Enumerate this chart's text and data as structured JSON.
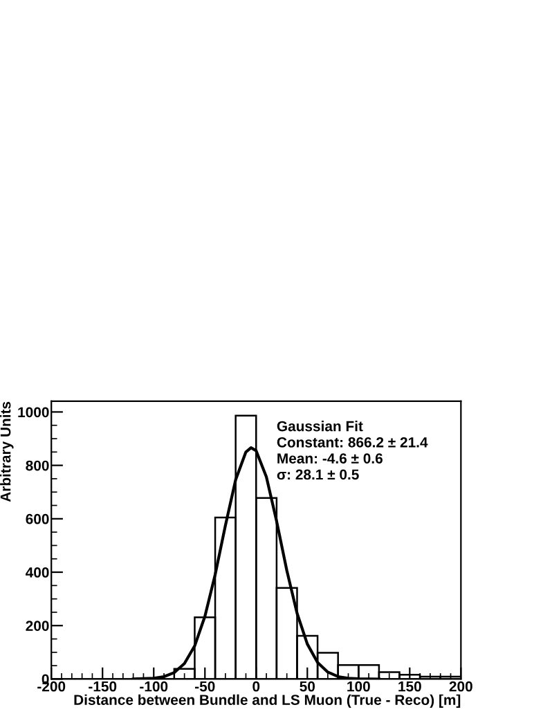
{
  "chart_data": {
    "type": "histogram",
    "xlabel": "Distance between Bundle and LS Muon (True - Reco) [m]",
    "ylabel": "Arbitrary Units",
    "bins": [
      -200,
      -180,
      -160,
      -140,
      -120,
      -100,
      -80,
      -60,
      -40,
      -20,
      0,
      20,
      40,
      60,
      80,
      100,
      120,
      140,
      160,
      180,
      200
    ],
    "values": [
      0,
      0,
      0,
      0,
      0,
      0,
      38,
      231,
      605,
      986,
      678,
      341,
      162,
      98,
      52,
      52,
      26,
      16,
      9,
      9
    ],
    "color": "#000000",
    "series": [
      {
        "type": "line",
        "color": "#000000",
        "x": [
          -120,
          -100,
          -90,
          -80,
          -70,
          -60,
          -50,
          -40,
          -30,
          -20,
          -10,
          -5,
          0,
          10,
          20,
          30,
          40,
          50,
          60,
          70,
          80,
          90,
          100,
          120
        ],
        "values": [
          0,
          3,
          9,
          24,
          58,
          124,
          235,
          391,
          575,
          746,
          850,
          866,
          855,
          757,
          591,
          406,
          246,
          131,
          62,
          26,
          9,
          3,
          1,
          0
        ]
      }
    ],
    "annotations": [
      "Gaussian Fit",
      "Constant: 866.2 ± 21.4",
      "Mean: -4.6 ± 0.6",
      "σ: 28.1 ± 0.5"
    ],
    "xlim": [
      -200,
      200
    ],
    "xticks": [
      -200,
      -150,
      -100,
      -50,
      0,
      50,
      100,
      150,
      200
    ],
    "ylim": [
      0,
      1040
    ],
    "yticks": [
      0,
      200,
      400,
      600,
      800,
      1000
    ],
    "grid": false,
    "legend": false
  }
}
